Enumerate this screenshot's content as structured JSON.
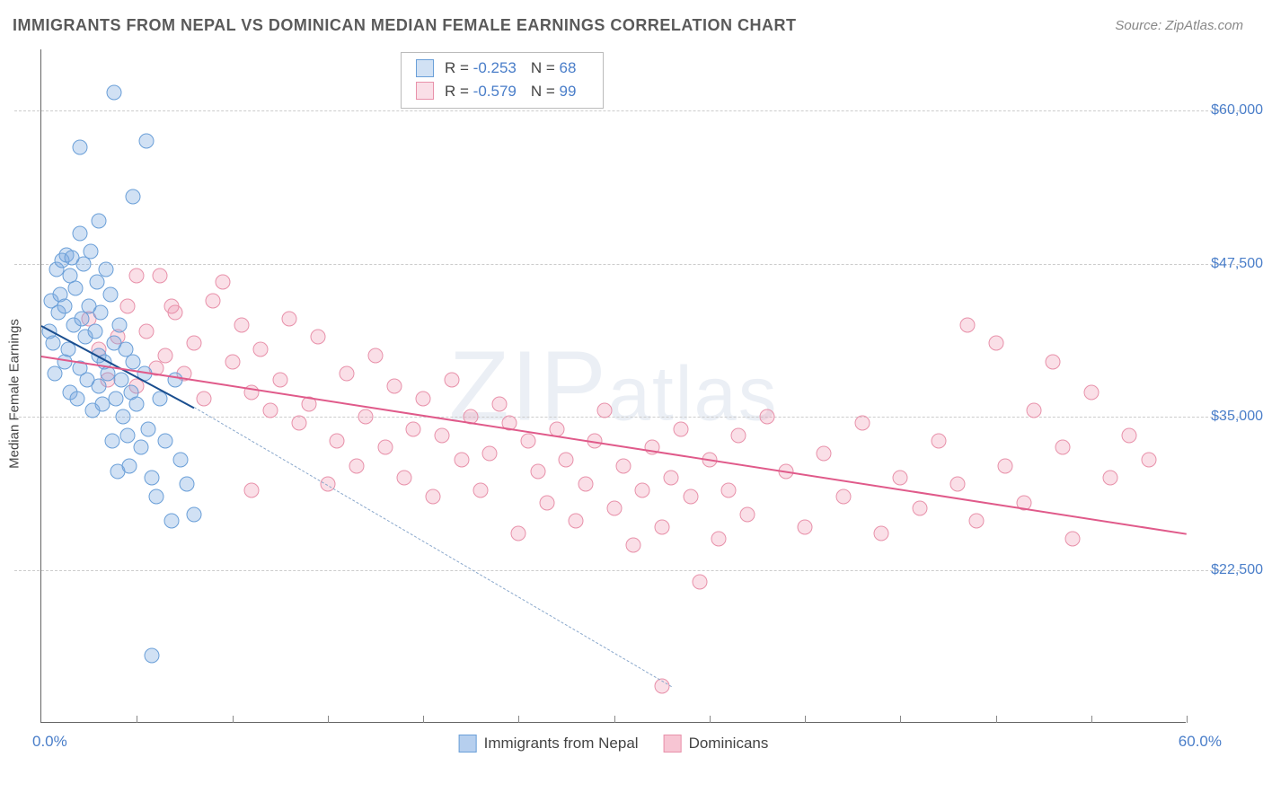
{
  "title": "IMMIGRANTS FROM NEPAL VS DOMINICAN MEDIAN FEMALE EARNINGS CORRELATION CHART",
  "source_label": "Source: ",
  "source_value": "ZipAtlas.com",
  "watermark": "ZIPatlas",
  "chart": {
    "type": "scatter",
    "xlim": [
      0,
      60
    ],
    "ylim": [
      10000,
      65000
    ],
    "x_axis_label_left": "0.0%",
    "x_axis_label_right": "60.0%",
    "y_axis_title": "Median Female Earnings",
    "y_ticks": [
      22500,
      35000,
      47500,
      60000
    ],
    "y_tick_labels": [
      "$22,500",
      "$35,000",
      "$47,500",
      "$60,000"
    ],
    "x_tick_positions": [
      5,
      10,
      15,
      20,
      25,
      30,
      35,
      40,
      45,
      50,
      55,
      60
    ],
    "grid_color": "#cccccc",
    "background_color": "#ffffff",
    "axis_color": "#666666",
    "marker_radius": 8.5,
    "marker_border_width": 1.2,
    "series": [
      {
        "name": "Immigrants from Nepal",
        "stats": {
          "R": "-0.253",
          "N": "68"
        },
        "fill_color": "rgba(122,168,224,0.35)",
        "border_color": "#6a9fd8",
        "trend_color": "#1a4e8f",
        "trend_width": 2.5,
        "trend_dash_color": "#8aa8cc",
        "trend": {
          "x1": 0,
          "y1": 42500,
          "x2": 8,
          "y2": 35800,
          "extend_to_x": 33,
          "extend_to_y": 13000
        },
        "points": [
          [
            0.4,
            42000
          ],
          [
            0.5,
            44500
          ],
          [
            0.6,
            41000
          ],
          [
            0.7,
            38500
          ],
          [
            0.8,
            47000
          ],
          [
            0.9,
            43500
          ],
          [
            1.0,
            45000
          ],
          [
            1.1,
            47800
          ],
          [
            1.2,
            39500
          ],
          [
            1.2,
            44000
          ],
          [
            1.3,
            48200
          ],
          [
            1.4,
            40500
          ],
          [
            1.5,
            46500
          ],
          [
            1.5,
            37000
          ],
          [
            1.6,
            48000
          ],
          [
            1.7,
            42500
          ],
          [
            1.8,
            45500
          ],
          [
            1.9,
            36500
          ],
          [
            2.0,
            50000
          ],
          [
            2.0,
            39000
          ],
          [
            2.1,
            43000
          ],
          [
            2.2,
            47500
          ],
          [
            2.3,
            41500
          ],
          [
            2.4,
            38000
          ],
          [
            2.5,
            44000
          ],
          [
            2.6,
            48500
          ],
          [
            2.7,
            35500
          ],
          [
            2.8,
            42000
          ],
          [
            2.9,
            46000
          ],
          [
            3.0,
            40000
          ],
          [
            3.0,
            37500
          ],
          [
            3.1,
            43500
          ],
          [
            3.2,
            36000
          ],
          [
            3.3,
            39500
          ],
          [
            3.4,
            47000
          ],
          [
            3.5,
            38500
          ],
          [
            3.6,
            45000
          ],
          [
            3.7,
            33000
          ],
          [
            3.8,
            41000
          ],
          [
            3.9,
            36500
          ],
          [
            4.0,
            30500
          ],
          [
            4.1,
            42500
          ],
          [
            4.2,
            38000
          ],
          [
            4.3,
            35000
          ],
          [
            4.4,
            40500
          ],
          [
            4.5,
            33500
          ],
          [
            4.6,
            31000
          ],
          [
            4.7,
            37000
          ],
          [
            4.8,
            39500
          ],
          [
            5.0,
            36000
          ],
          [
            5.2,
            32500
          ],
          [
            5.4,
            38500
          ],
          [
            5.6,
            34000
          ],
          [
            5.8,
            30000
          ],
          [
            6.0,
            28500
          ],
          [
            6.2,
            36500
          ],
          [
            6.5,
            33000
          ],
          [
            6.8,
            26500
          ],
          [
            7.0,
            38000
          ],
          [
            7.3,
            31500
          ],
          [
            7.6,
            29500
          ],
          [
            3.0,
            51000
          ],
          [
            3.8,
            61500
          ],
          [
            5.5,
            57500
          ],
          [
            4.8,
            53000
          ],
          [
            2.0,
            57000
          ],
          [
            5.8,
            15500
          ],
          [
            8.0,
            27000
          ]
        ]
      },
      {
        "name": "Dominicans",
        "stats": {
          "R": "-0.579",
          "N": "99"
        },
        "fill_color": "rgba(240,150,175,0.30)",
        "border_color": "#e891aa",
        "trend_color": "#e05a8a",
        "trend_width": 2.5,
        "trend": {
          "x1": 0,
          "y1": 40000,
          "x2": 60,
          "y2": 25500
        },
        "points": [
          [
            2.5,
            43000
          ],
          [
            3.0,
            40500
          ],
          [
            3.5,
            38000
          ],
          [
            4.0,
            41500
          ],
          [
            4.5,
            44000
          ],
          [
            5.0,
            37500
          ],
          [
            5.5,
            42000
          ],
          [
            6.0,
            39000
          ],
          [
            6.2,
            46500
          ],
          [
            6.5,
            40000
          ],
          [
            7.0,
            43500
          ],
          [
            7.5,
            38500
          ],
          [
            8.0,
            41000
          ],
          [
            8.5,
            36500
          ],
          [
            9.0,
            44500
          ],
          [
            9.5,
            46000
          ],
          [
            10.0,
            39500
          ],
          [
            10.5,
            42500
          ],
          [
            11.0,
            37000
          ],
          [
            11.5,
            40500
          ],
          [
            12.0,
            35500
          ],
          [
            12.5,
            38000
          ],
          [
            13.0,
            43000
          ],
          [
            13.5,
            34500
          ],
          [
            14.0,
            36000
          ],
          [
            14.5,
            41500
          ],
          [
            15.0,
            29500
          ],
          [
            15.5,
            33000
          ],
          [
            16.0,
            38500
          ],
          [
            16.5,
            31000
          ],
          [
            17.0,
            35000
          ],
          [
            17.5,
            40000
          ],
          [
            18.0,
            32500
          ],
          [
            18.5,
            37500
          ],
          [
            19.0,
            30000
          ],
          [
            19.5,
            34000
          ],
          [
            20.0,
            36500
          ],
          [
            20.5,
            28500
          ],
          [
            21.0,
            33500
          ],
          [
            21.5,
            38000
          ],
          [
            22.0,
            31500
          ],
          [
            22.5,
            35000
          ],
          [
            23.0,
            29000
          ],
          [
            23.5,
            32000
          ],
          [
            24.0,
            36000
          ],
          [
            24.5,
            34500
          ],
          [
            25.0,
            25500
          ],
          [
            25.5,
            33000
          ],
          [
            26.0,
            30500
          ],
          [
            26.5,
            28000
          ],
          [
            27.0,
            34000
          ],
          [
            27.5,
            31500
          ],
          [
            28.0,
            26500
          ],
          [
            28.5,
            29500
          ],
          [
            29.0,
            33000
          ],
          [
            29.5,
            35500
          ],
          [
            30.0,
            27500
          ],
          [
            30.5,
            31000
          ],
          [
            31.0,
            24500
          ],
          [
            31.5,
            29000
          ],
          [
            32.0,
            32500
          ],
          [
            32.5,
            26000
          ],
          [
            33.0,
            30000
          ],
          [
            33.5,
            34000
          ],
          [
            34.0,
            28500
          ],
          [
            34.5,
            21500
          ],
          [
            35.0,
            31500
          ],
          [
            35.5,
            25000
          ],
          [
            36.0,
            29000
          ],
          [
            36.5,
            33500
          ],
          [
            37.0,
            27000
          ],
          [
            38.0,
            35000
          ],
          [
            39.0,
            30500
          ],
          [
            40.0,
            26000
          ],
          [
            41.0,
            32000
          ],
          [
            42.0,
            28500
          ],
          [
            43.0,
            34500
          ],
          [
            44.0,
            25500
          ],
          [
            45.0,
            30000
          ],
          [
            46.0,
            27500
          ],
          [
            47.0,
            33000
          ],
          [
            48.5,
            42500
          ],
          [
            48.0,
            29500
          ],
          [
            49.0,
            26500
          ],
          [
            50.0,
            41000
          ],
          [
            50.5,
            31000
          ],
          [
            51.5,
            28000
          ],
          [
            52.0,
            35500
          ],
          [
            53.0,
            39500
          ],
          [
            53.5,
            32500
          ],
          [
            54.0,
            25000
          ],
          [
            55.0,
            37000
          ],
          [
            56.0,
            30000
          ],
          [
            57.0,
            33500
          ],
          [
            58.0,
            31500
          ],
          [
            32.5,
            13000
          ],
          [
            5.0,
            46500
          ],
          [
            6.8,
            44000
          ],
          [
            11.0,
            29000
          ]
        ]
      }
    ],
    "bottom_legend": [
      {
        "label": "Immigrants from Nepal",
        "fill": "rgba(122,168,224,0.55)",
        "border": "#6a9fd8"
      },
      {
        "label": "Dominicans",
        "fill": "rgba(240,150,175,0.55)",
        "border": "#e891aa"
      }
    ]
  }
}
